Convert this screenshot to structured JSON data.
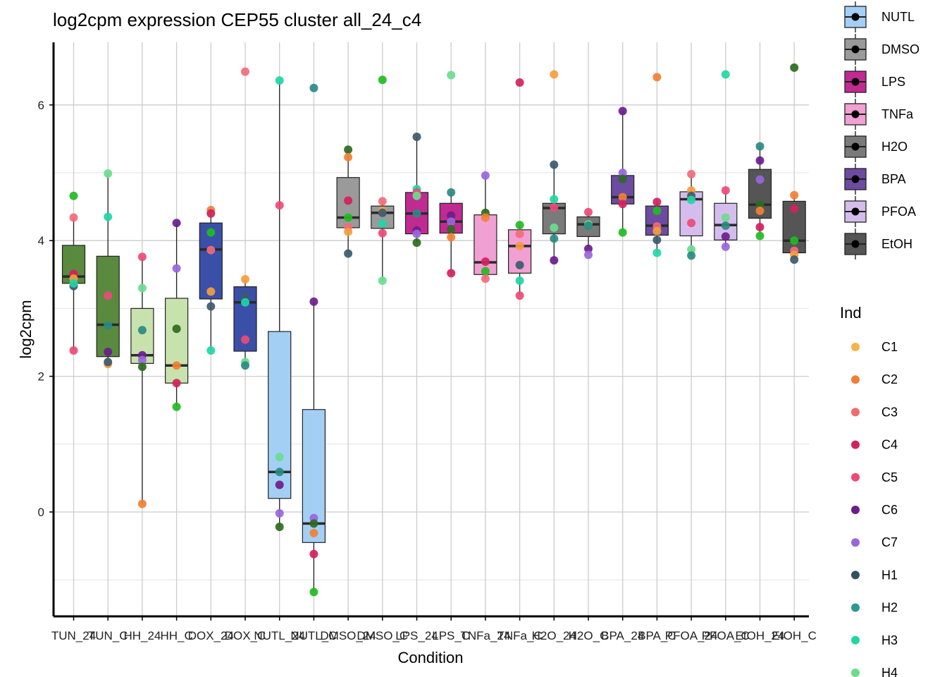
{
  "chart_data": {
    "type": "box",
    "title": "log2cpm expression CEP55 cluster all_24_c4",
    "xlabel": "Condition",
    "ylabel": "log2cpm",
    "ylim": [
      -1.3,
      6.9
    ],
    "yticks": [
      0,
      2,
      4,
      6
    ],
    "categories": [
      "TUN_24",
      "TUN_C",
      "HH_24",
      "HH_C",
      "DOX_24",
      "DOX_C",
      "NUTL_24",
      "NUTL_C",
      "DMSO_24",
      "DMSO_C",
      "LPS_24",
      "LPS_C",
      "TNFa_24",
      "TNFa_C",
      "H2O_24",
      "H2O_C",
      "BPA_24",
      "BPA_C",
      "PFOA_24",
      "PFOA_C",
      "EtOH_24",
      "EtOH_C"
    ],
    "tick_labels": [
      "TUN_24",
      "TUN_C",
      "HH_24",
      "HH_C",
      "DOX_24",
      "DOX_C",
      "NUTL_24",
      "NUTL_C",
      "DMSO_24",
      "DMSO_C",
      "LPS_24",
      "LPS_C",
      "TNFa_24",
      "TNFa_C",
      "H2O_24",
      "H2O_C",
      "BPA_24",
      "BPA_C",
      "PFOA_24",
      "PFOA_C",
      "EtOH_24",
      "EtOH_C"
    ],
    "boxes": [
      {
        "q1": 3.37,
        "median": 3.47,
        "q3": 3.93,
        "min": 2.38,
        "max": 4.34,
        "fill": "#5a8a3e"
      },
      {
        "q1": 2.29,
        "median": 2.76,
        "q3": 3.77,
        "min": 2.18,
        "max": 4.99,
        "fill": "#5a8a3e"
      },
      {
        "q1": 2.19,
        "median": 2.31,
        "q3": 3.0,
        "min": 0.12,
        "max": 3.76,
        "fill": "#c8e2ad"
      },
      {
        "q1": 1.9,
        "median": 2.16,
        "q3": 3.15,
        "min": 1.55,
        "max": 4.26,
        "fill": "#c8e2ad"
      },
      {
        "q1": 3.14,
        "median": 3.87,
        "q3": 4.26,
        "min": 2.38,
        "max": 4.45,
        "fill": "#3a4fa8"
      },
      {
        "q1": 2.37,
        "median": 3.09,
        "q3": 3.32,
        "min": 2.16,
        "max": 3.43,
        "fill": "#3a4fa8"
      },
      {
        "q1": 0.2,
        "median": 0.59,
        "q3": 2.66,
        "min": -0.22,
        "max": 6.36,
        "fill": "#a4cff5"
      },
      {
        "q1": -0.45,
        "median": -0.17,
        "q3": 1.51,
        "min": -1.18,
        "max": 3.1,
        "fill": "#a4cff5"
      },
      {
        "q1": 4.19,
        "median": 4.34,
        "q3": 4.93,
        "min": 3.81,
        "max": 5.34,
        "fill": "#9a9a9a"
      },
      {
        "q1": 4.18,
        "median": 4.41,
        "q3": 4.51,
        "min": 3.41,
        "max": 4.58,
        "fill": "#9a9a9a"
      },
      {
        "q1": 4.1,
        "median": 4.4,
        "q3": 4.71,
        "min": 3.97,
        "max": 5.53,
        "fill": "#c02a91"
      },
      {
        "q1": 4.11,
        "median": 4.28,
        "q3": 4.55,
        "min": 3.52,
        "max": 4.71,
        "fill": "#c02a91"
      },
      {
        "q1": 3.5,
        "median": 3.68,
        "q3": 4.38,
        "min": 3.44,
        "max": 4.96,
        "fill": "#f0a0d2"
      },
      {
        "q1": 3.52,
        "median": 3.92,
        "q3": 4.16,
        "min": 3.19,
        "max": 4.23,
        "fill": "#f0a0d2"
      },
      {
        "q1": 4.1,
        "median": 4.48,
        "q3": 4.55,
        "min": 3.71,
        "max": 5.12,
        "fill": "#7a7a7a"
      },
      {
        "q1": 4.06,
        "median": 4.24,
        "q3": 4.35,
        "min": 3.88,
        "max": 4.42,
        "fill": "#7a7a7a"
      },
      {
        "q1": 4.54,
        "median": 4.64,
        "q3": 4.96,
        "min": 4.12,
        "max": 5.91,
        "fill": "#6d4ba0"
      },
      {
        "q1": 4.08,
        "median": 4.22,
        "q3": 4.51,
        "min": 3.82,
        "max": 4.57,
        "fill": "#6d4ba0"
      },
      {
        "q1": 4.07,
        "median": 4.61,
        "q3": 4.72,
        "min": 3.78,
        "max": 4.98,
        "fill": "#d4bdec"
      },
      {
        "q1": 4.01,
        "median": 4.23,
        "q3": 4.55,
        "min": 3.91,
        "max": 4.74,
        "fill": "#d4bdec"
      },
      {
        "q1": 4.33,
        "median": 4.53,
        "q3": 5.05,
        "min": 4.07,
        "max": 5.39,
        "fill": "#555555"
      },
      {
        "q1": 3.82,
        "median": 4.0,
        "q3": 4.58,
        "min": 3.73,
        "max": 4.67,
        "fill": "#555555"
      }
    ],
    "points": [
      {
        "cat": 0,
        "values": [
          3.51,
          4.66,
          4.34,
          3.44,
          3.33,
          3.37,
          2.38
        ]
      },
      {
        "cat": 1,
        "values": [
          2.18,
          2.21,
          4.35,
          3.19,
          4.99,
          2.75,
          2.36
        ]
      },
      {
        "cat": 2,
        "values": [
          3.76,
          3.3,
          2.68,
          2.31,
          2.24,
          2.14,
          0.12
        ]
      },
      {
        "cat": 3,
        "values": [
          4.26,
          3.59,
          2.7,
          2.16,
          1.9,
          1.55
        ]
      },
      {
        "cat": 4,
        "values": [
          4.45,
          4.4,
          4.12,
          3.86,
          3.25,
          3.03,
          2.38
        ]
      },
      {
        "cat": 5,
        "values": [
          6.49,
          3.43,
          3.19,
          3.09,
          2.54,
          2.21,
          2.16
        ]
      },
      {
        "cat": 6,
        "values": [
          6.36,
          4.52,
          0.81,
          0.59,
          0.4,
          -0.02,
          -0.22
        ]
      },
      {
        "cat": 7,
        "values": [
          6.25,
          3.1,
          -0.09,
          -0.17,
          -0.31,
          -0.62,
          -1.18
        ]
      },
      {
        "cat": 8,
        "values": [
          5.34,
          5.23,
          4.59,
          4.34,
          4.2,
          4.13,
          3.81
        ]
      },
      {
        "cat": 9,
        "values": [
          6.37,
          4.58,
          4.44,
          4.41,
          4.25,
          4.11,
          3.41
        ]
      },
      {
        "cat": 10,
        "values": [
          5.53,
          4.76,
          4.71,
          4.66,
          4.4,
          4.15,
          4.1,
          3.97
        ]
      },
      {
        "cat": 11,
        "values": [
          6.44,
          4.71,
          4.37,
          4.28,
          4.17,
          4.05,
          3.52
        ]
      },
      {
        "cat": 12,
        "values": [
          4.96,
          4.41,
          4.34,
          3.69,
          3.55,
          3.44
        ]
      },
      {
        "cat": 13,
        "values": [
          6.33,
          4.23,
          4.1,
          3.92,
          3.64,
          3.41,
          3.19
        ]
      },
      {
        "cat": 14,
        "values": [
          6.45,
          5.12,
          4.61,
          4.49,
          4.19,
          4.03,
          3.71
        ]
      },
      {
        "cat": 15,
        "values": [
          4.42,
          4.24,
          4.22,
          3.88,
          3.79
        ]
      },
      {
        "cat": 16,
        "values": [
          5.91,
          5.0,
          4.91,
          4.64,
          4.54,
          4.12
        ]
      },
      {
        "cat": 17,
        "values": [
          6.41,
          4.57,
          4.44,
          4.21,
          4.14,
          4.01,
          3.82
        ]
      },
      {
        "cat": 18,
        "values": [
          4.98,
          4.74,
          4.66,
          4.6,
          4.26,
          3.87,
          3.78
        ]
      },
      {
        "cat": 19,
        "values": [
          6.45,
          4.74,
          4.34,
          4.22,
          4.06,
          3.91
        ]
      },
      {
        "cat": 20,
        "values": [
          5.39,
          5.18,
          4.9,
          4.53,
          4.44,
          4.2,
          4.07
        ]
      },
      {
        "cat": 21,
        "values": [
          6.55,
          4.67,
          4.47,
          4.0,
          3.85,
          3.79,
          3.72
        ]
      }
    ],
    "point_colors": [
      "#d4215e",
      "#22bb22",
      "#f26b7a",
      "#f59d3d",
      "#3c5a6e",
      "#20d6a5",
      "#ee4a77",
      "#6bdc8e",
      "#2b8a82",
      "#6b1d8c",
      "#9a66dc",
      "#2e6b1f",
      "#f28034"
    ],
    "legend_condition": {
      "entries": [
        {
          "label": "NUTL",
          "color": "#a4cff5"
        },
        {
          "label": "DMSO",
          "color": "#9a9a9a"
        },
        {
          "label": "LPS",
          "color": "#c02a91"
        },
        {
          "label": "TNFa",
          "color": "#f0a0d2"
        },
        {
          "label": "H2O",
          "color": "#7a7a7a"
        },
        {
          "label": "BPA",
          "color": "#6d4ba0"
        },
        {
          "label": "PFOA",
          "color": "#d4bdec"
        },
        {
          "label": "EtOH",
          "color": "#555555"
        }
      ]
    },
    "legend_ind": {
      "title": "Ind",
      "entries": [
        {
          "label": "C1",
          "color": "#f8b24a"
        },
        {
          "label": "C2",
          "color": "#f28034"
        },
        {
          "label": "C3",
          "color": "#f26b6b"
        },
        {
          "label": "C4",
          "color": "#d4215e"
        },
        {
          "label": "C5",
          "color": "#ee4a77"
        },
        {
          "label": "C6",
          "color": "#6b1d8c"
        },
        {
          "label": "C7",
          "color": "#9a66dc"
        },
        {
          "label": "H1",
          "color": "#34505e"
        },
        {
          "label": "H2",
          "color": "#2b9a90"
        },
        {
          "label": "H3",
          "color": "#20d6a5"
        },
        {
          "label": "H4",
          "color": "#6bdc8e"
        }
      ]
    }
  }
}
